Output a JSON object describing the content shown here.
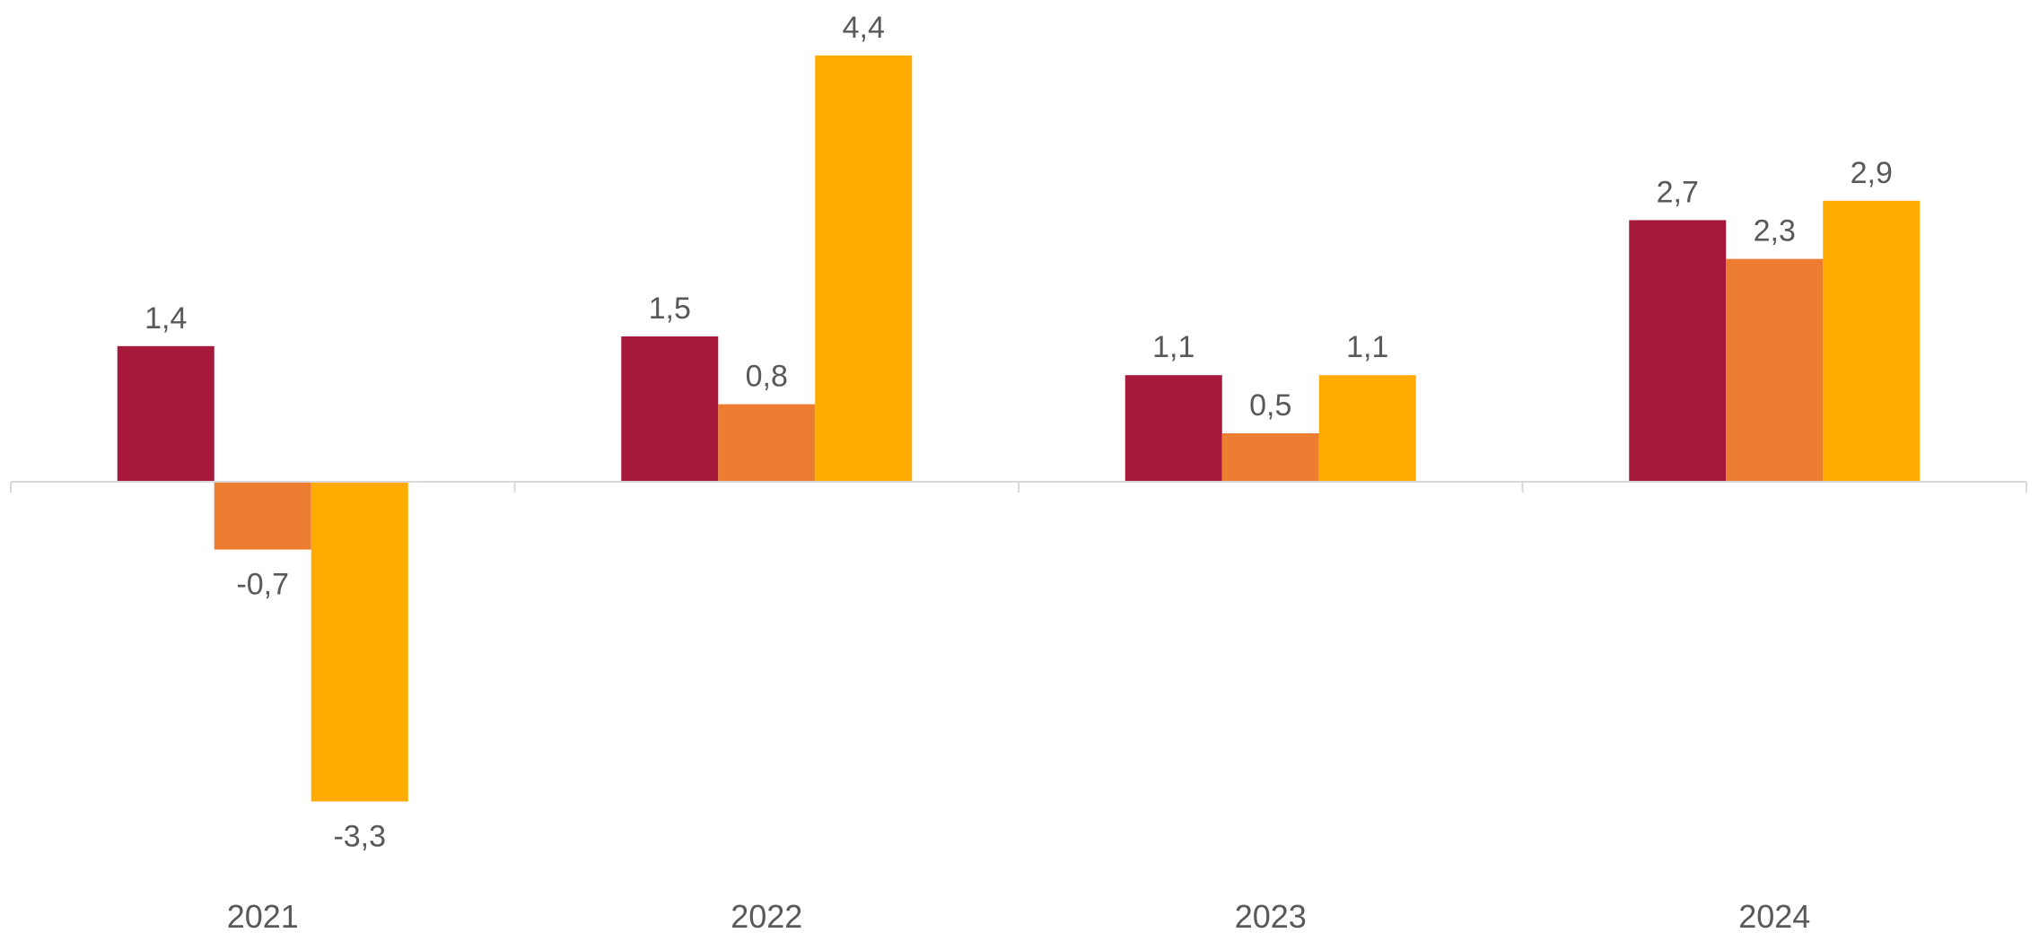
{
  "chart_data": {
    "type": "bar",
    "categories": [
      "2021",
      "2022",
      "2023",
      "2024"
    ],
    "series": [
      {
        "color": "#A6193B",
        "values": [
          1.4,
          1.5,
          1.1,
          2.7
        ],
        "labels": [
          "1,4",
          "1,5",
          "1,1",
          "2,7"
        ]
      },
      {
        "color": "#ED7D31",
        "values": [
          -0.7,
          0.8,
          0.5,
          2.3
        ],
        "labels": [
          "-0,7",
          "0,8",
          "0,5",
          "2,3"
        ]
      },
      {
        "color": "#FFAB00",
        "values": [
          -3.3,
          4.4,
          1.1,
          2.9
        ],
        "labels": [
          "-3,3",
          "4,4",
          "1,1",
          "2,9"
        ]
      }
    ],
    "ylim": [
      -4.5,
      4.9
    ],
    "grid": false,
    "legend": "none",
    "axis_color": "#D9D9D9"
  }
}
